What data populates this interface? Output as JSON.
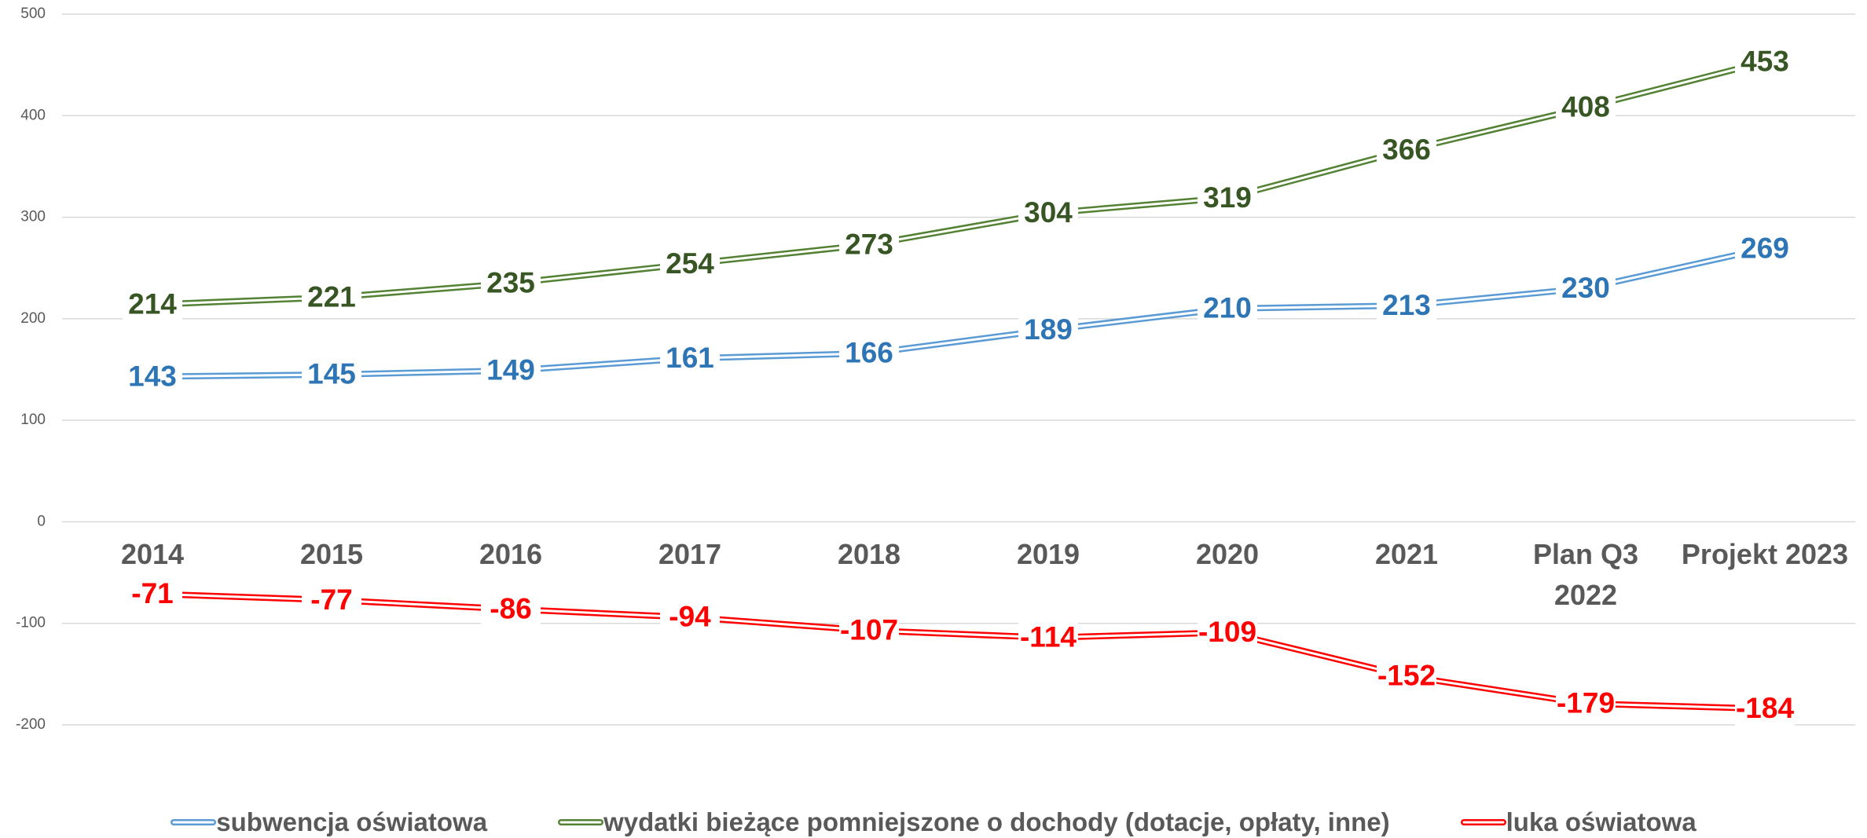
{
  "chart_data": {
    "type": "line",
    "categories": [
      "2014",
      "2015",
      "2016",
      "2017",
      "2018",
      "2019",
      "2020",
      "2021",
      "Plan Q3\n2022",
      "Projekt 2023"
    ],
    "series": [
      {
        "name": "subwencja oświatowa",
        "color": "#5b9bd5",
        "label_color": "#2e75b6",
        "values": [
          143,
          145,
          149,
          161,
          166,
          189,
          210,
          213,
          230,
          269
        ]
      },
      {
        "name": "wydatki bieżące pomniejszone o dochody (dotacje, opłaty, inne)",
        "color": "#548235",
        "label_color": "#375623",
        "values": [
          214,
          221,
          235,
          254,
          273,
          304,
          319,
          366,
          408,
          453
        ]
      },
      {
        "name": "luka oświatowa",
        "color": "#ff0000",
        "label_color": "#ff0000",
        "values": [
          -71,
          -77,
          -86,
          -94,
          -107,
          -114,
          -109,
          -152,
          -179,
          -184
        ]
      }
    ],
    "ylim": [
      -200,
      500
    ],
    "yticks": [
      -200,
      -100,
      0,
      100,
      200,
      300,
      400,
      500
    ],
    "grid": true,
    "legend": "bottom"
  }
}
